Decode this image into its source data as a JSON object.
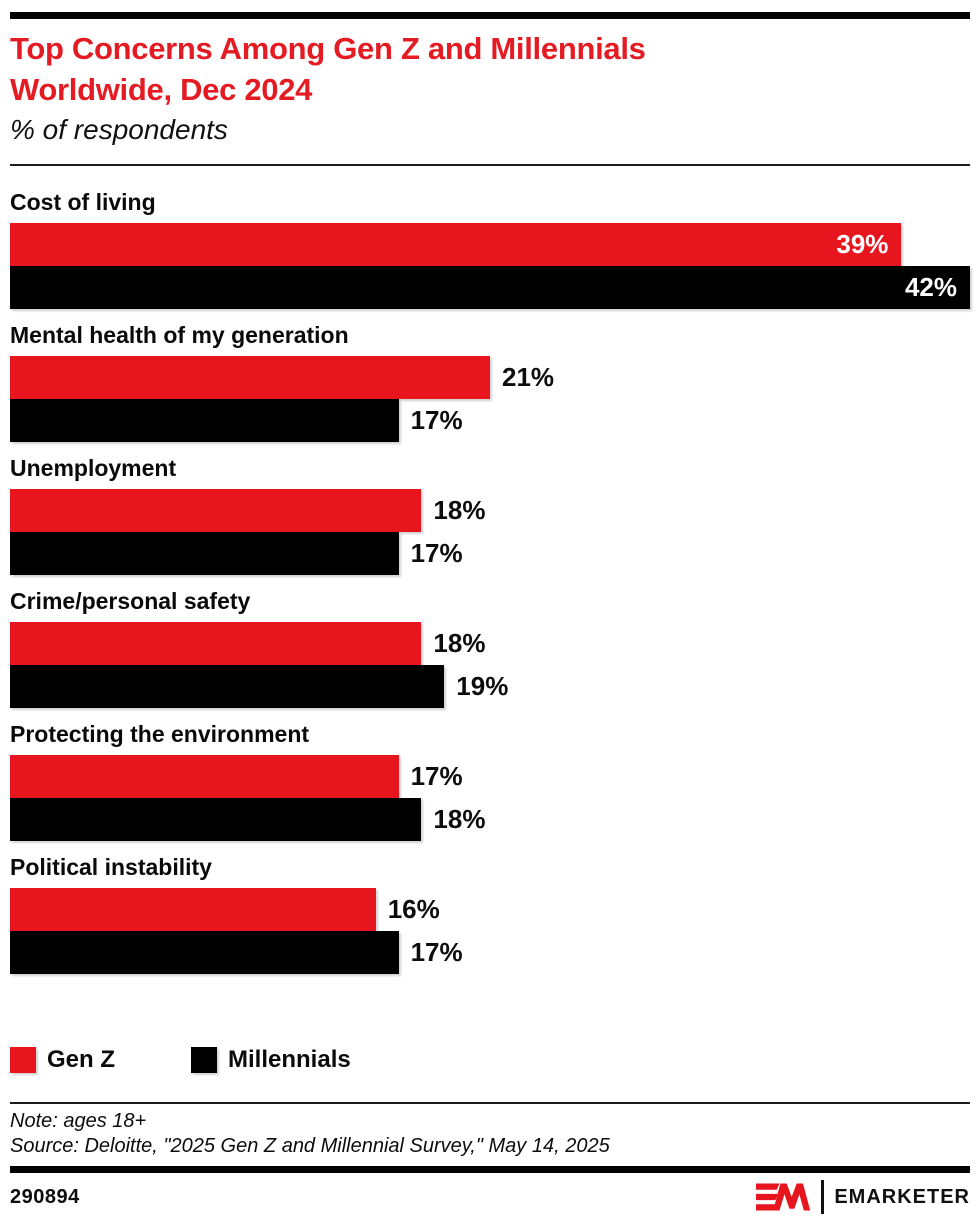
{
  "header": {
    "title_line1": "Top Concerns Among Gen Z and Millennials",
    "title_line2": "Worldwide, Dec 2024",
    "subtitle": "% of respondents"
  },
  "chart_data": {
    "type": "bar",
    "orientation": "horizontal",
    "title": "Top Concerns Among Gen Z and Millennials Worldwide, Dec 2024",
    "subtitle": "% of respondents",
    "unit": "%",
    "axis_max": 42,
    "grid": false,
    "legend_position": "bottom",
    "categories": [
      "Cost of living",
      "Mental health of my generation",
      "Unemployment",
      "Crime/personal safety",
      "Protecting the environment",
      "Political instability"
    ],
    "series": [
      {
        "name": "Gen Z",
        "color": "#E7161E",
        "values": [
          39,
          21,
          18,
          18,
          17,
          16
        ]
      },
      {
        "name": "Millennials",
        "color": "#000000",
        "values": [
          42,
          17,
          17,
          19,
          18,
          17
        ]
      }
    ],
    "value_label_suffix": "%"
  },
  "footer": {
    "note": "Note: ages 18+",
    "source": "Source: Deloitte, \"2025 Gen Z and Millennial Survey,\" May 14, 2025",
    "chart_id": "290894",
    "brand": "EMARKETER"
  },
  "colors": {
    "accent_red": "#E7161E",
    "bar_black": "#000000",
    "title_red": "#E41B22"
  }
}
